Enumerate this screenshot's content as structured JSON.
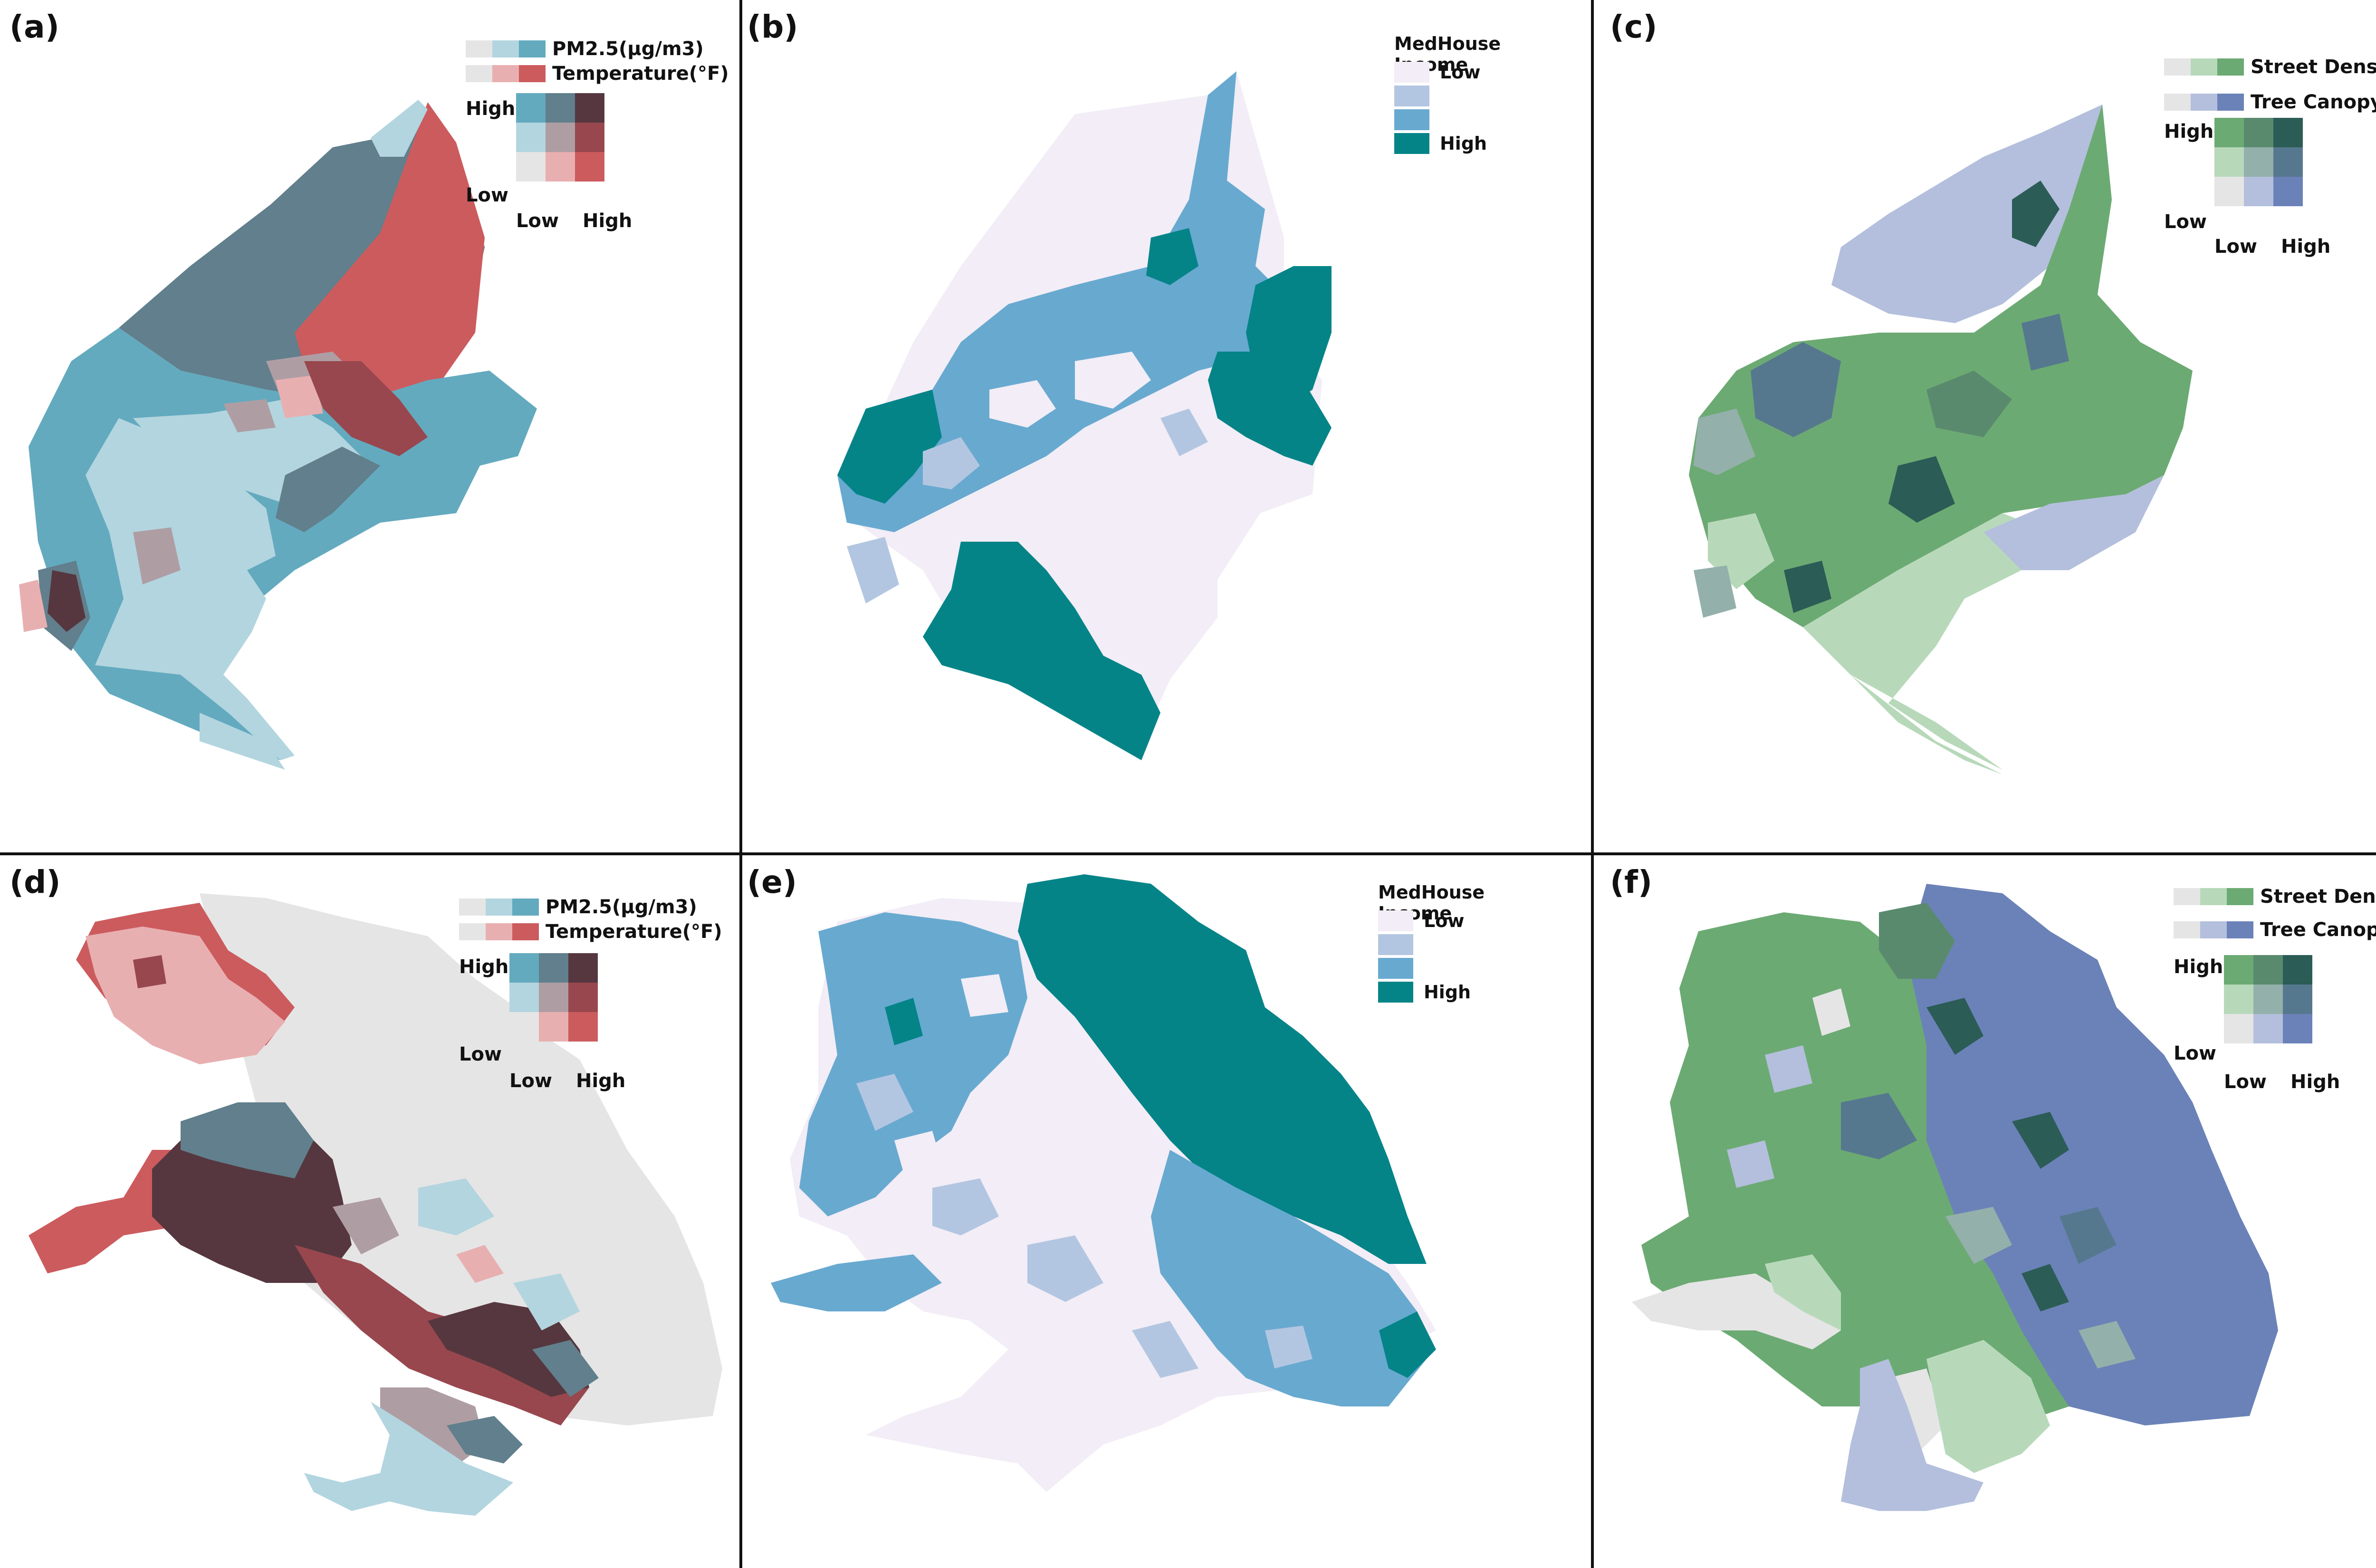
{
  "panels": [
    {
      "label": "(a)",
      "type": "bivariate",
      "legend": {
        "var1": "PM2.5(μg/m3)",
        "var2": "Temperature(°F)",
        "high": "High",
        "low": "Low",
        "x_low": "Low",
        "x_high": "High",
        "var1_colors": [
          "#e5e5e5",
          "#b3d5df",
          "#63aabf"
        ],
        "var2_colors": [
          "#e5e5e5",
          "#e8afb1",
          "#cc5b5e"
        ],
        "grid": [
          [
            "#63aabf",
            "#617f8c",
            "#56373f"
          ],
          [
            "#b3d5df",
            "#ae9ea4",
            "#98474e"
          ],
          [
            "#e5e5e5",
            "#e8afb1",
            "#cc5b5e"
          ]
        ]
      }
    },
    {
      "label": "(b)",
      "type": "income",
      "legend": {
        "title": "MedHouse Income",
        "low": "Low",
        "high": "High",
        "colors": [
          "#f2edf6",
          "#b3c6e1",
          "#68a9d0",
          "#058488"
        ]
      }
    },
    {
      "label": "(c)",
      "type": "bivariate",
      "legend": {
        "var1": "Street Density",
        "var2": "Tree Canopy",
        "high": "High",
        "low": "Low",
        "x_low": "Low",
        "x_high": "High",
        "var1_colors": [
          "#e5e5e5",
          "#b7d9ba",
          "#6caa73"
        ],
        "var2_colors": [
          "#e5e5e5",
          "#b3bfdc",
          "#6b82b8"
        ],
        "grid": [
          [
            "#6caa73",
            "#5a8a6e",
            "#2c5c56"
          ],
          [
            "#b7d9ba",
            "#94b0ab",
            "#56788f"
          ],
          [
            "#e5e5e5",
            "#b3bfdc",
            "#6b82b8"
          ]
        ]
      }
    },
    {
      "label": "(d)",
      "type": "bivariate",
      "legend": {
        "var1": "PM2.5(μg/m3)",
        "var2": "Temperature(°F)",
        "high": "High",
        "low": "Low",
        "x_low": "Low",
        "x_high": "High",
        "var1_colors": [
          "#e5e5e5",
          "#b3d5df",
          "#63aabf"
        ],
        "var2_colors": [
          "#e5e5e5",
          "#e8afb1",
          "#cc5b5e"
        ],
        "grid": [
          [
            "#63aabf",
            "#617f8c",
            "#56373f"
          ],
          [
            "#b3d5df",
            "#ae9ea4",
            "#98474e"
          ],
          [
            "#e5e5e5",
            "#e8afb1",
            "#cc5b5e"
          ]
        ]
      }
    },
    {
      "label": "(e)",
      "type": "income",
      "legend": {
        "title": "MedHouse Income",
        "low": "Low",
        "high": "High",
        "colors": [
          "#f2edf6",
          "#b3c6e1",
          "#68a9d0",
          "#058488"
        ]
      }
    },
    {
      "label": "(f)",
      "type": "bivariate",
      "legend": {
        "var1": "Street Density",
        "var2": "Tree Canopy",
        "high": "High",
        "low": "Low",
        "x_low": "Low",
        "x_high": "High",
        "var1_colors": [
          "#e5e5e5",
          "#b7d9ba",
          "#6caa73"
        ],
        "var2_colors": [
          "#e5e5e5",
          "#b3bfdc",
          "#6b82b8"
        ],
        "grid": [
          [
            "#6caa73",
            "#5a8a6e",
            "#2c5c56"
          ],
          [
            "#b7d9ba",
            "#94b0ab",
            "#56788f"
          ],
          [
            "#e5e5e5",
            "#b3bfdc",
            "#6b82b8"
          ]
        ]
      }
    }
  ]
}
